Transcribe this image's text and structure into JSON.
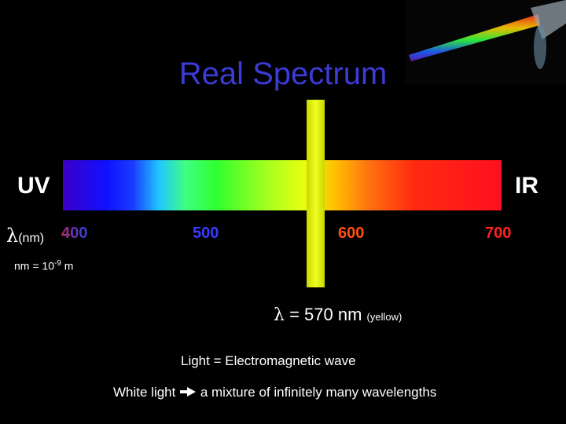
{
  "title": "Real Spectrum",
  "spectrum": {
    "left_label": "UV",
    "right_label": "IR",
    "axis_symbol": "λ",
    "axis_unit": "(nm)",
    "ticks": [
      "400",
      "500",
      "600",
      "700"
    ]
  },
  "unit_note": {
    "base": "nm = 10",
    "exponent": "-9",
    "unit": " m"
  },
  "yellow_note": {
    "symbol": "λ",
    "text": " = 570 nm",
    "color_name": "(yellow)"
  },
  "statements": [
    "Light = Electromagnetic wave",
    {
      "left": "White light",
      "right": "a mixture of infinitely many wavelengths"
    }
  ]
}
